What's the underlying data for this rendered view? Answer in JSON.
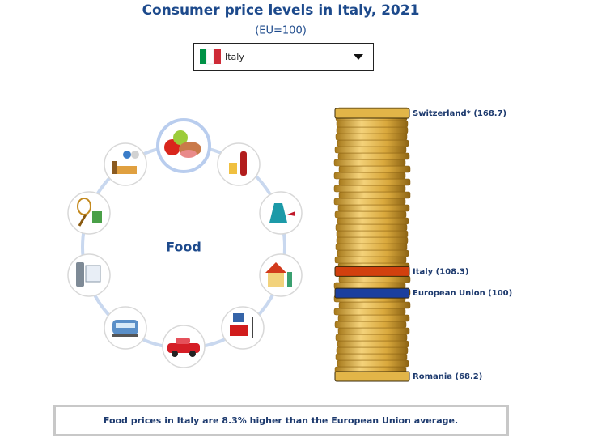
{
  "header": {
    "title": "Consumer price levels in Italy, 2021",
    "subtitle": "(EU=100)"
  },
  "dropdown": {
    "selected": "Italy"
  },
  "circle": {
    "selected_category": "Food"
  },
  "stack": {
    "markers": [
      {
        "label": "Switzerland* (168.7)",
        "value": 168.7,
        "color": "#e2b548"
      },
      {
        "label": "Italy (108.3)",
        "value": 108.3,
        "color": "#d2400e"
      },
      {
        "label": "European Union (100)",
        "value": 100,
        "color": "#1b3f9e"
      },
      {
        "label": "Romania (68.2)",
        "value": 68.2,
        "color": "#e2b548"
      }
    ]
  },
  "footer": {
    "text": "Food prices in Italy are 8.3% higher than the European Union average."
  }
}
